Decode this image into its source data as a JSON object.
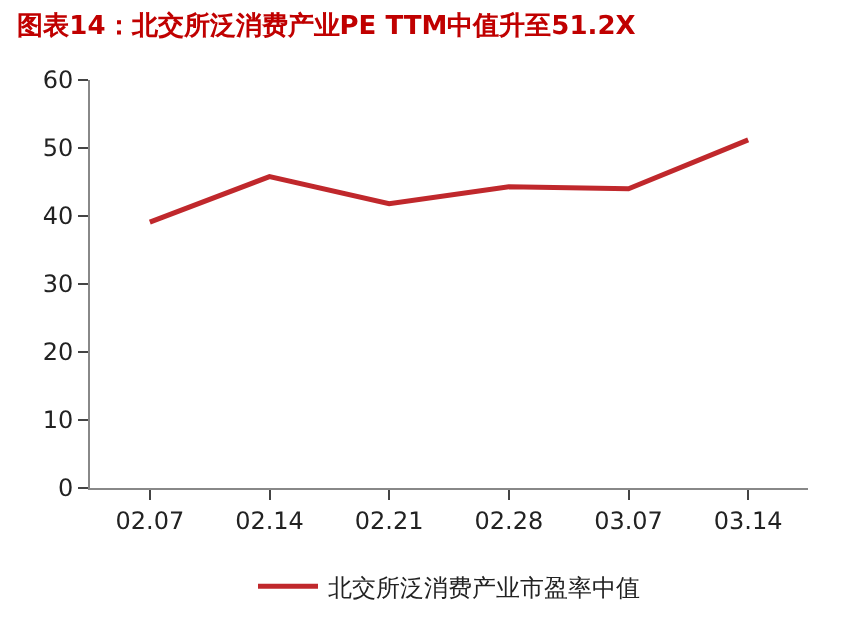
{
  "chart_data": {
    "type": "line",
    "title": "图表14：北交所泛消费产业PE TTM中值升至51.2X",
    "categories": [
      "02.07",
      "02.14",
      "02.21",
      "02.28",
      "03.07",
      "03.14"
    ],
    "series": [
      {
        "name": "北交所泛消费产业市盈率中值",
        "color": "#c0282c",
        "values": [
          39.1,
          45.8,
          41.8,
          44.3,
          44.0,
          51.2
        ]
      }
    ],
    "ylim": [
      0,
      60
    ],
    "yticks": [
      0,
      10,
      20,
      30,
      40,
      50,
      60
    ],
    "legend": "bottom",
    "marker": "none",
    "line_style": "solid"
  }
}
